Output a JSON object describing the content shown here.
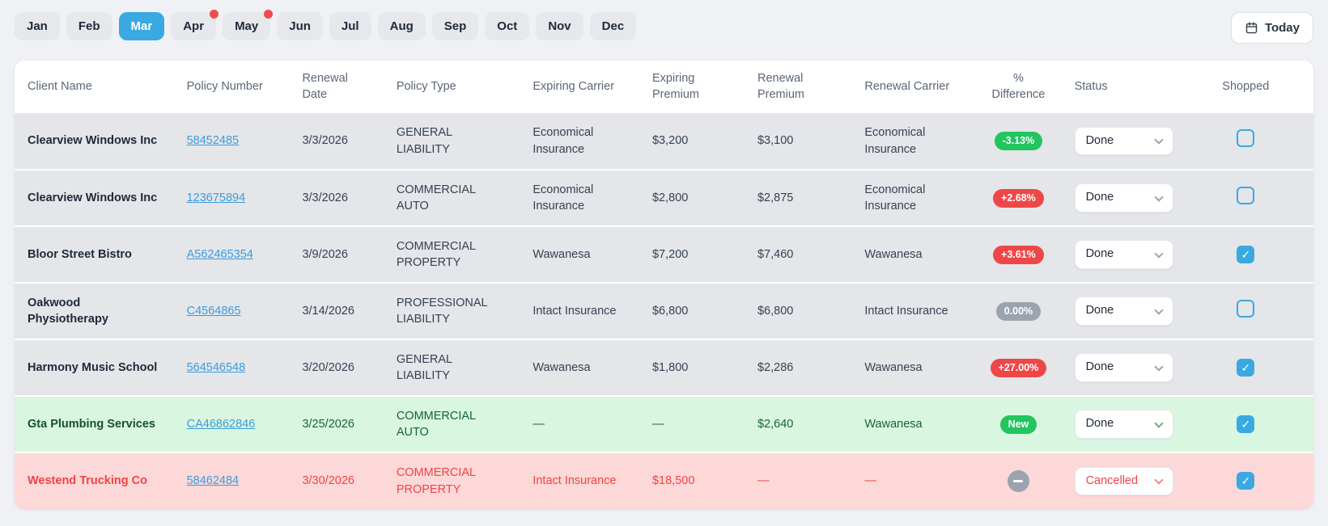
{
  "colors": {
    "page-bg": "#eff1f4",
    "accent": "#3aa9e2",
    "link": "#3b9ddb",
    "badge-green": "#22c55e",
    "badge-red": "#ee4747",
    "badge-gray": "#9ca3af",
    "row-gray": "#e4e6ea",
    "row-green": "#d9f6e0",
    "row-red": "#fdd8d8",
    "text-green": "#166534",
    "text-red": "#ef4444"
  },
  "toolbar": {
    "months": [
      {
        "label": "Jan",
        "active": false,
        "dot": false
      },
      {
        "label": "Feb",
        "active": false,
        "dot": false
      },
      {
        "label": "Mar",
        "active": true,
        "dot": false
      },
      {
        "label": "Apr",
        "active": false,
        "dot": true
      },
      {
        "label": "May",
        "active": false,
        "dot": true
      },
      {
        "label": "Jun",
        "active": false,
        "dot": false
      },
      {
        "label": "Jul",
        "active": false,
        "dot": false
      },
      {
        "label": "Aug",
        "active": false,
        "dot": false
      },
      {
        "label": "Sep",
        "active": false,
        "dot": false
      },
      {
        "label": "Oct",
        "active": false,
        "dot": false
      },
      {
        "label": "Nov",
        "active": false,
        "dot": false
      },
      {
        "label": "Dec",
        "active": false,
        "dot": false
      }
    ],
    "today_label": "Today"
  },
  "table": {
    "columns": [
      "Client Name",
      "Policy Number",
      "Renewal Date",
      "Policy Type",
      "Expiring Carrier",
      "Expiring Premium",
      "Renewal Premium",
      "Renewal Carrier",
      "% Difference",
      "Status",
      "Shopped"
    ],
    "rows": [
      {
        "client": "Clearview Windows Inc",
        "policy_number": "58452485",
        "renewal_date": "3/3/2026",
        "policy_type": "GENERAL LIABILITY",
        "expiring_carrier": "Economical Insurance",
        "expiring_premium": "$3,200",
        "renewal_premium": "$3,100",
        "renewal_carrier": "Economical Insurance",
        "diff": {
          "label": "-3.13%",
          "kind": "decrease"
        },
        "status": "Done",
        "shopped": false,
        "row_type": "default"
      },
      {
        "client": "Clearview Windows Inc",
        "policy_number": "123675894",
        "renewal_date": "3/3/2026",
        "policy_type": "COMMERCIAL AUTO",
        "expiring_carrier": "Economical Insurance",
        "expiring_premium": "$2,800",
        "renewal_premium": "$2,875",
        "renewal_carrier": "Economical Insurance",
        "diff": {
          "label": "+2.68%",
          "kind": "increase"
        },
        "status": "Done",
        "shopped": false,
        "row_type": "default"
      },
      {
        "client": "Bloor Street Bistro",
        "policy_number": "A562465354",
        "renewal_date": "3/9/2026",
        "policy_type": "COMMERCIAL PROPERTY",
        "expiring_carrier": "Wawanesa",
        "expiring_premium": "$7,200",
        "renewal_premium": "$7,460",
        "renewal_carrier": "Wawanesa",
        "diff": {
          "label": "+3.61%",
          "kind": "increase"
        },
        "status": "Done",
        "shopped": true,
        "row_type": "default"
      },
      {
        "client": "Oakwood Physiotherapy",
        "policy_number": "C4564865",
        "renewal_date": "3/14/2026",
        "policy_type": "PROFESSIONAL LIABILITY",
        "expiring_carrier": "Intact Insurance",
        "expiring_premium": "$6,800",
        "renewal_premium": "$6,800",
        "renewal_carrier": "Intact Insurance",
        "diff": {
          "label": "0.00%",
          "kind": "neutral"
        },
        "status": "Done",
        "shopped": false,
        "row_type": "default"
      },
      {
        "client": "Harmony Music School",
        "policy_number": "564546548",
        "renewal_date": "3/20/2026",
        "policy_type": "GENERAL LIABILITY",
        "expiring_carrier": "Wawanesa",
        "expiring_premium": "$1,800",
        "renewal_premium": "$2,286",
        "renewal_carrier": "Wawanesa",
        "diff": {
          "label": "+27.00%",
          "kind": "increase"
        },
        "status": "Done",
        "shopped": true,
        "row_type": "default"
      },
      {
        "client": "Gta Plumbing Services",
        "policy_number": "CA46862846",
        "renewal_date": "3/25/2026",
        "policy_type": "COMMERCIAL AUTO",
        "expiring_carrier": "—",
        "expiring_premium": "—",
        "renewal_premium": "$2,640",
        "renewal_carrier": "Wawanesa",
        "diff": {
          "label": "New",
          "kind": "new"
        },
        "status": "Done",
        "shopped": true,
        "row_type": "new"
      },
      {
        "client": "Westend Trucking Co",
        "policy_number": "58462484",
        "renewal_date": "3/30/2026",
        "policy_type": "COMMERCIAL PROPERTY",
        "expiring_carrier": "Intact Insurance",
        "expiring_premium": "$18,500",
        "renewal_premium": "—",
        "renewal_carrier": "—",
        "diff": {
          "label": "",
          "kind": "none"
        },
        "status": "Cancelled",
        "shopped": true,
        "row_type": "cancelled"
      }
    ]
  }
}
